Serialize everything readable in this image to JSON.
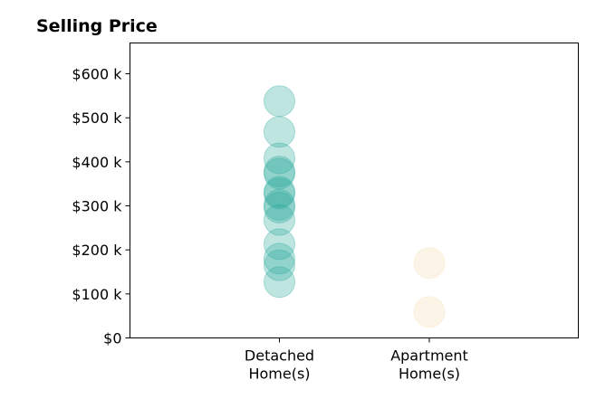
{
  "chart_data": {
    "type": "scatter",
    "title": "Selling Price",
    "xlabel": "",
    "ylabel": "",
    "categories": [
      "Detached\nHome(s)",
      "Apartment\nHome(s)"
    ],
    "ylim": [
      0,
      670000
    ],
    "y_ticks": [
      0,
      100000,
      200000,
      300000,
      400000,
      500000,
      600000
    ],
    "y_tick_labels": [
      "$0",
      "$100 k",
      "$200 k",
      "$300 k",
      "$400 k",
      "$500 k",
      "$600 k"
    ],
    "grid": false,
    "legend": "none",
    "series": [
      {
        "category": "Detached\nHome(s)",
        "color": "#2ca89b",
        "values": [
          538000,
          468000,
          408000,
          378000,
          373000,
          332000,
          328000,
          302000,
          296000,
          268000,
          213000,
          180000,
          165000,
          127000
        ]
      },
      {
        "category": "Apartment\nHome(s)",
        "color": "#f5deb0",
        "values": [
          170000,
          59000
        ]
      }
    ]
  }
}
